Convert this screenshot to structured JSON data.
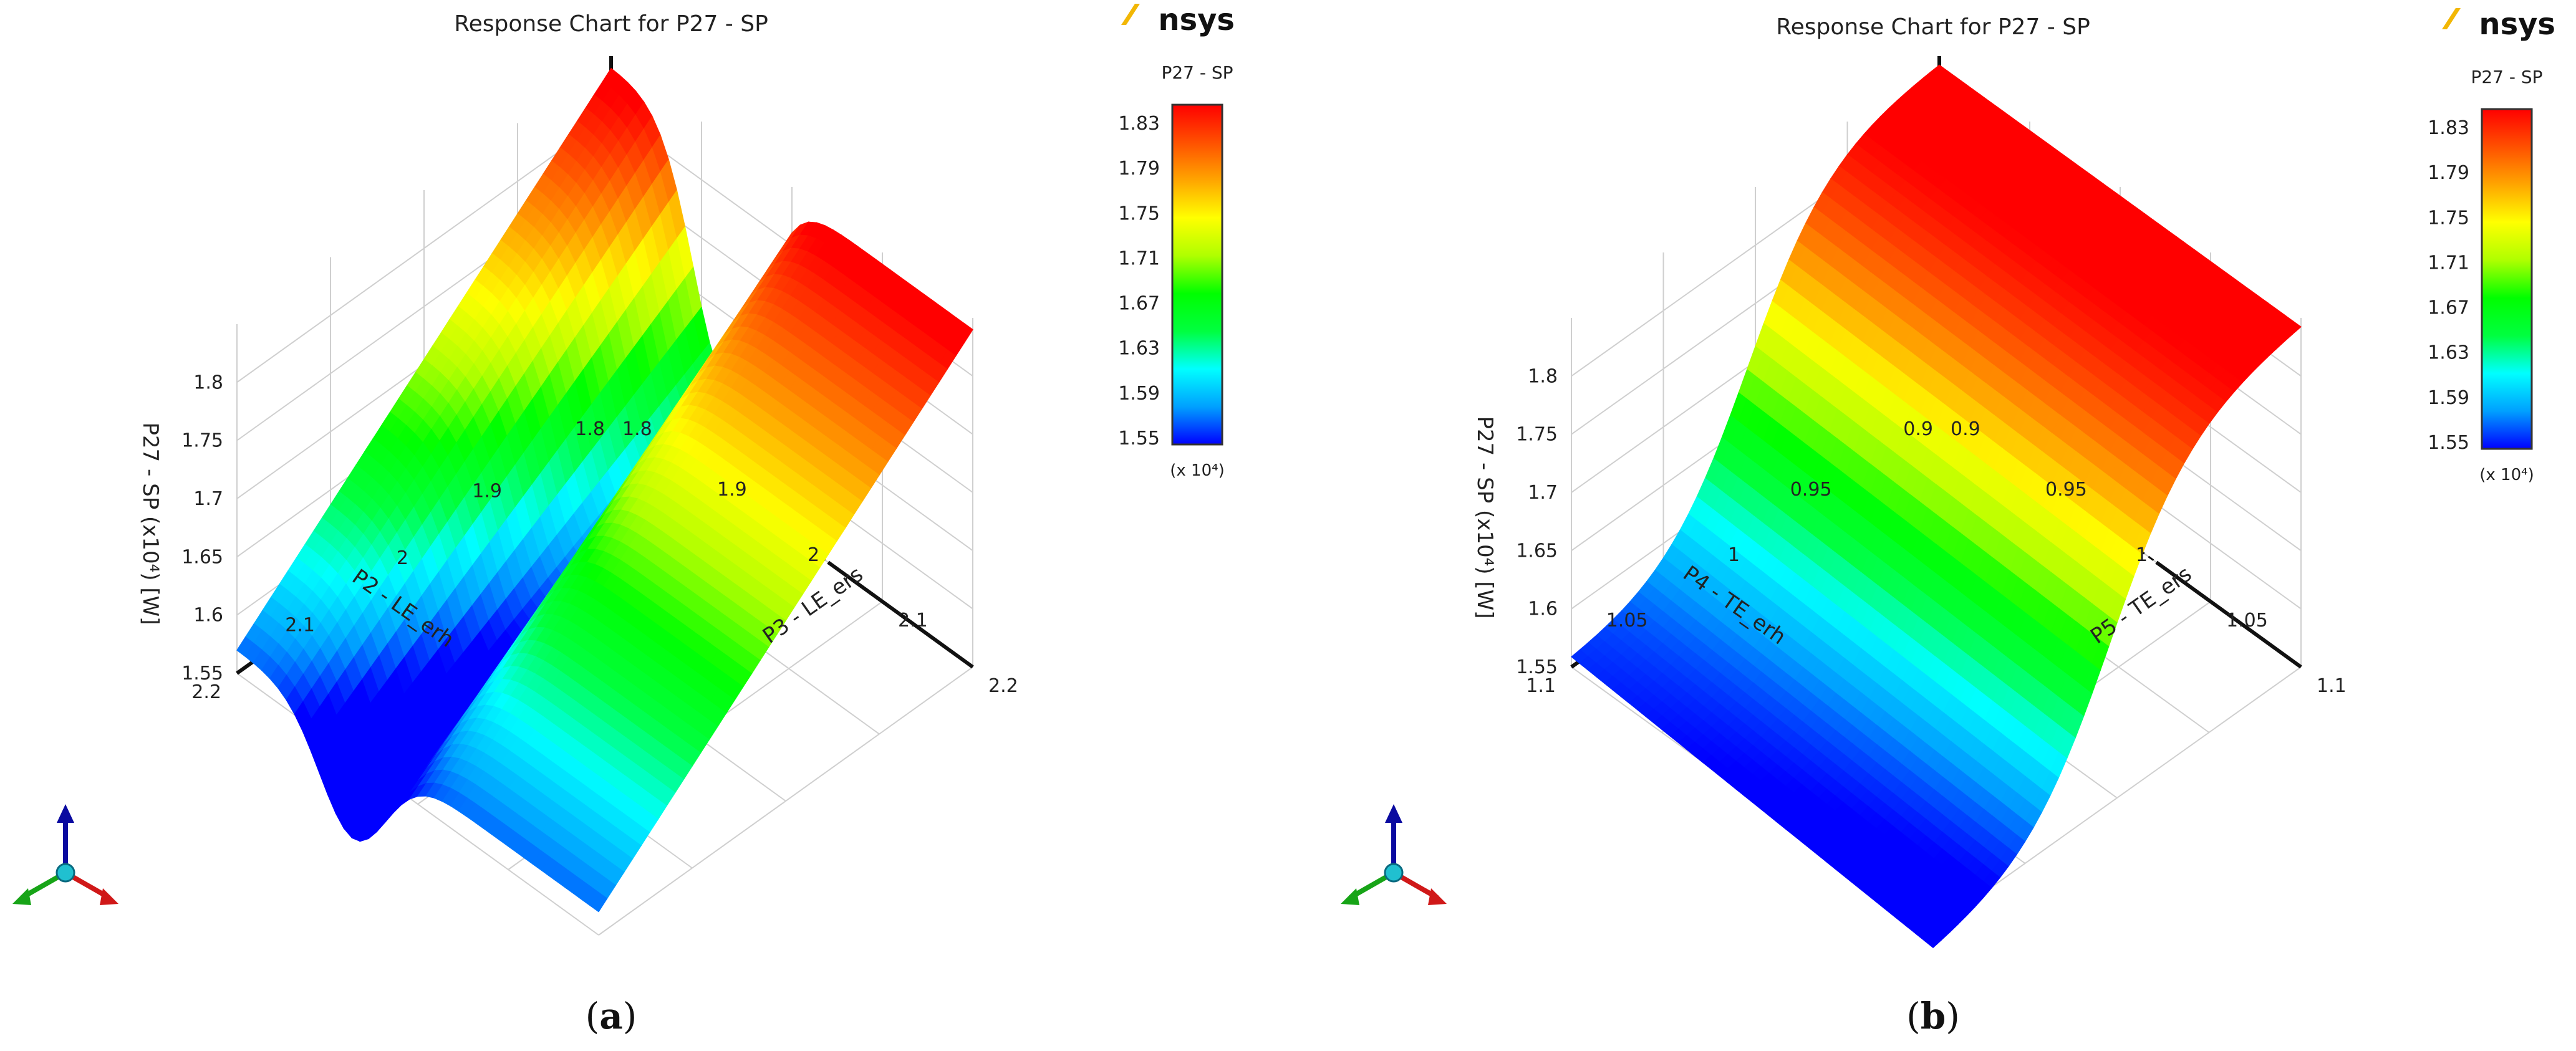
{
  "brand": {
    "name": "Ansys",
    "color": "#f2b705",
    "mark_char": "/\\",
    "text": "nsys"
  },
  "colorscale": {
    "stops": [
      "#0000ff",
      "#00a0ff",
      "#00ffff",
      "#00ff40",
      "#00ff00",
      "#b0ff00",
      "#ffff00",
      "#ffa500",
      "#ff5000",
      "#ff0000"
    ]
  },
  "chart_data": [
    {
      "type": "surface3d",
      "panel": "(a)",
      "caption_letter": "a",
      "title": "Response Chart for P27 - SP",
      "zlabel": "P27 - SP",
      "zunit_label": "[W]",
      "zscale_label": "(x10⁴)",
      "zticks": [
        "1.55",
        "1.6",
        "1.65",
        "1.7",
        "1.75",
        "1.8"
      ],
      "zlim": [
        1.55,
        1.85
      ],
      "xlabel": "P2 - LE_erh",
      "xticks": [
        "1.8",
        "1.9",
        "2",
        "2.1",
        "2.2"
      ],
      "xlim": [
        1.8,
        2.2
      ],
      "ylabel": "P3 - LE_ers",
      "yticks": [
        "1.8",
        "1.9",
        "2",
        "2.1",
        "2.2"
      ],
      "ylim": [
        1.8,
        2.2
      ],
      "surface_note": "response peaks near P2=1.8,P3=1.8 and along ridge; low near P2=2.2",
      "legend": {
        "title": "P27 - SP",
        "ticks": [
          "1.83",
          "1.79",
          "1.75",
          "1.71",
          "1.67",
          "1.63",
          "1.59",
          "1.55"
        ],
        "scale": "(x 10⁴)"
      }
    },
    {
      "type": "surface3d",
      "panel": "(b)",
      "caption_letter": "b",
      "title": "Response Chart for P27 - SP",
      "zlabel": "P27 - SP",
      "zunit_label": "[W]",
      "zscale_label": "(x10⁴)",
      "zticks": [
        "1.55",
        "1.6",
        "1.65",
        "1.7",
        "1.75",
        "1.8"
      ],
      "zlim": [
        1.55,
        1.85
      ],
      "xlabel": "P4 - TE_erh",
      "xticks": [
        "0.9",
        "0.95",
        "1",
        "1.05",
        "1.1"
      ],
      "xlim": [
        0.9,
        1.1
      ],
      "ylabel": "P5 - TE_ers",
      "yticks": [
        "0.9",
        "0.95",
        "1",
        "1.05",
        "1.1"
      ],
      "ylim": [
        0.9,
        1.1
      ],
      "surface_note": "high near P4=0.9, decreasing monotonically to low at P4=1.1",
      "legend": {
        "title": "P27 - SP",
        "ticks": [
          "1.83",
          "1.79",
          "1.75",
          "1.71",
          "1.67",
          "1.63",
          "1.59",
          "1.55"
        ],
        "scale": "(x 10⁴)"
      }
    }
  ]
}
